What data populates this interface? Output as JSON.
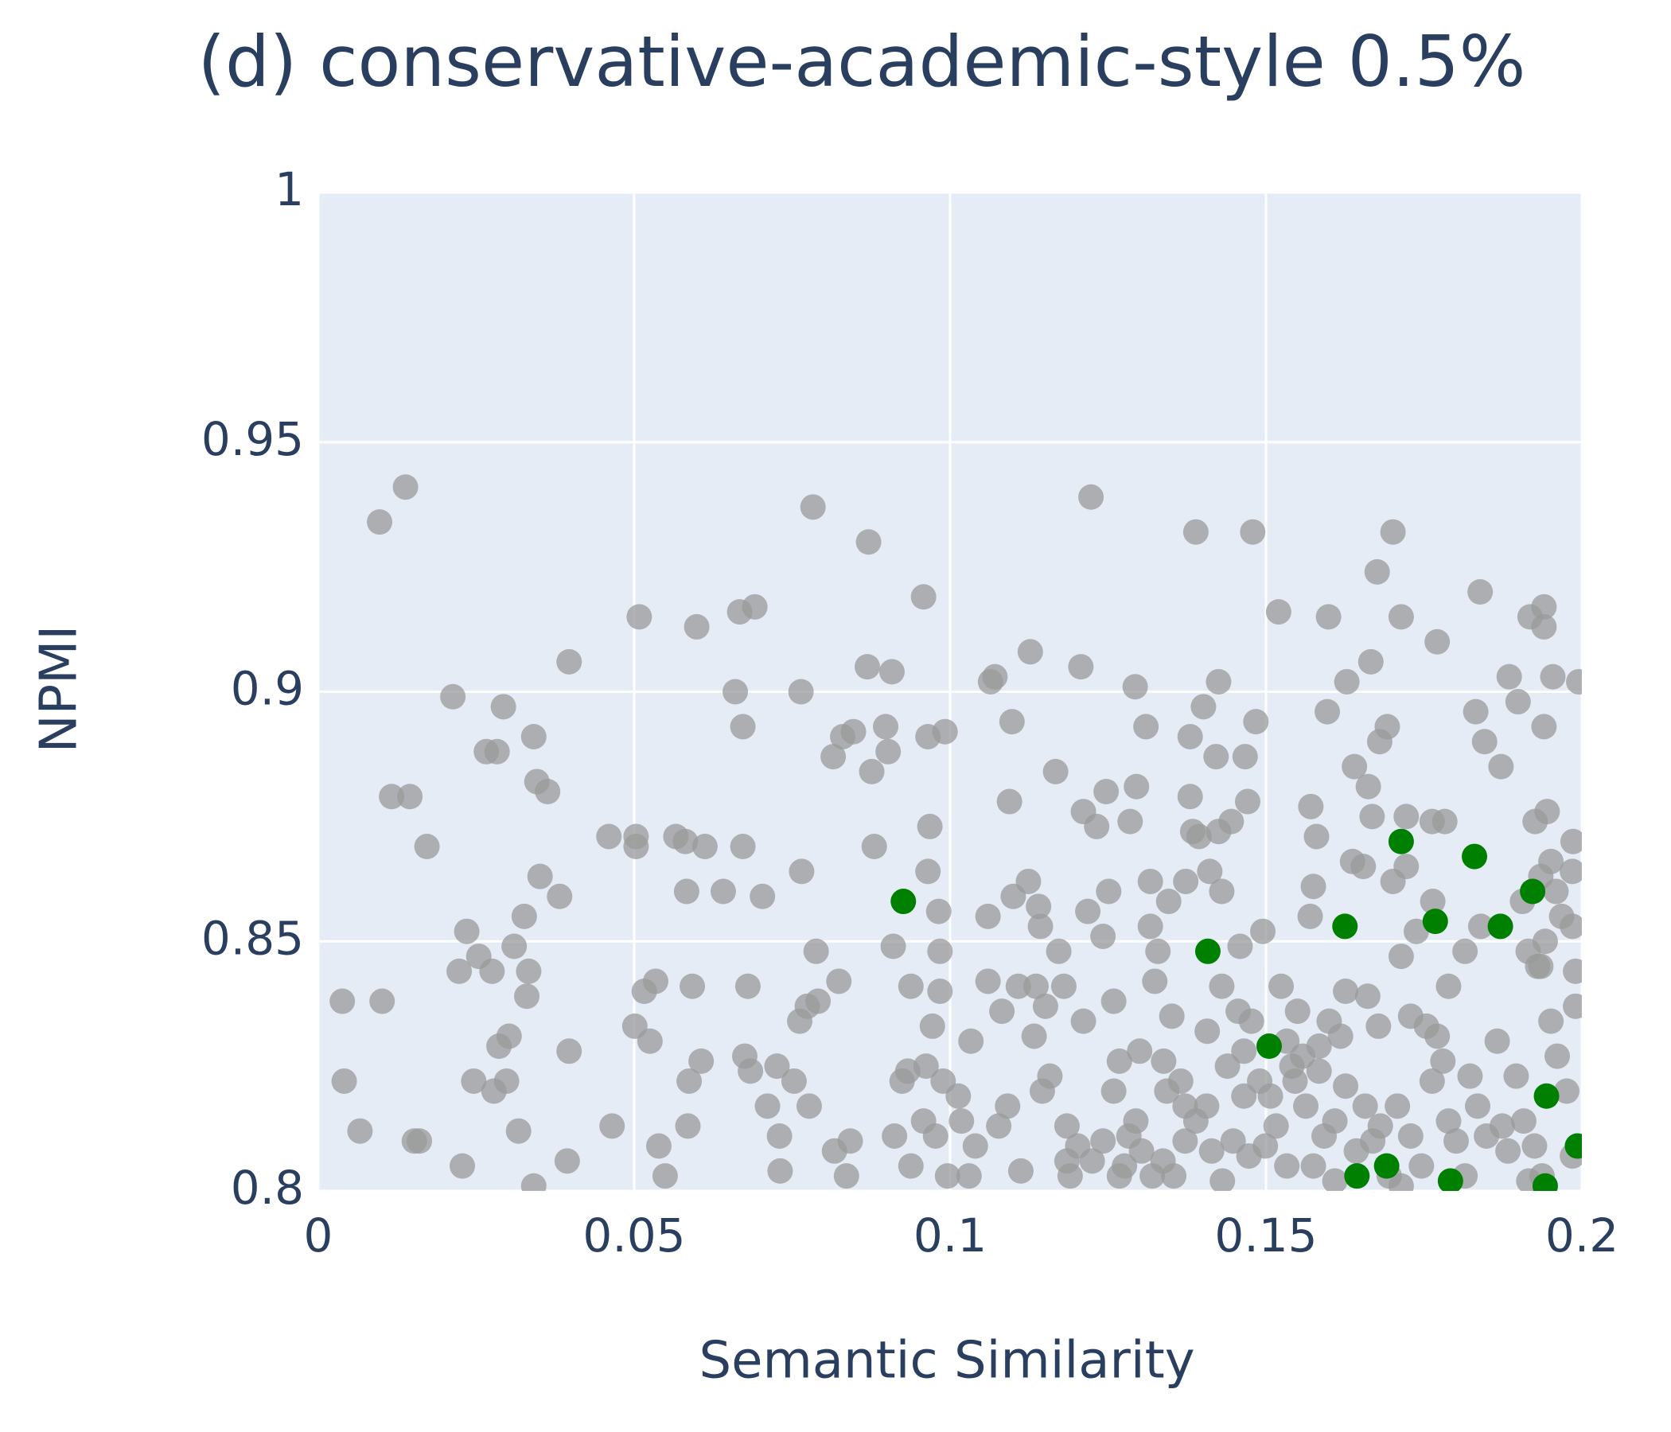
{
  "chart_data": {
    "type": "scatter",
    "title": "(d) conservative-academic-style 0.5%",
    "x_label": "Semantic Similarity",
    "y_label": "NPMI",
    "xlim": [
      0,
      0.2
    ],
    "xticks": [
      0,
      0.05,
      0.1,
      0.15,
      0.2
    ],
    "ylim": [
      0.8,
      1
    ],
    "yticks": [
      0.8,
      0.85,
      0.9,
      0.95,
      1
    ],
    "grid": true,
    "series": [
      {
        "color": "#999999",
        "opacity": 0.75,
        "x": [
          0.0038,
          0.0041,
          0.0066,
          0.0097,
          0.0138,
          0.0101,
          0.0116,
          0.0145,
          0.0172,
          0.0152,
          0.016,
          0.0213,
          0.0235,
          0.0223,
          0.0254,
          0.0246,
          0.0228,
          0.0266,
          0.0283,
          0.0293,
          0.0275,
          0.0278,
          0.0298,
          0.0286,
          0.0302,
          0.031,
          0.0326,
          0.0333,
          0.033,
          0.0317,
          0.0341,
          0.0346,
          0.0363,
          0.0351,
          0.0382,
          0.0397,
          0.0397,
          0.0394,
          0.0341,
          0.046,
          0.0465,
          0.0503,
          0.0503,
          0.0508,
          0.0501,
          0.0516,
          0.0525,
          0.0534,
          0.0539,
          0.0549,
          0.0566,
          0.0581,
          0.0583,
          0.0587,
          0.0585,
          0.0592,
          0.0599,
          0.0606,
          0.0612,
          0.0641,
          0.066,
          0.0667,
          0.0672,
          0.0672,
          0.0691,
          0.0675,
          0.068,
          0.0684,
          0.0703,
          0.0711,
          0.073,
          0.0726,
          0.0731,
          0.0753,
          0.0764,
          0.0765,
          0.0762,
          0.0774,
          0.0783,
          0.0788,
          0.0791,
          0.0777,
          0.0817,
          0.0824,
          0.0815,
          0.083,
          0.0847,
          0.0836,
          0.0842,
          0.0871,
          0.0869,
          0.0876,
          0.088,
          0.0908,
          0.0898,
          0.0902,
          0.091,
          0.0912,
          0.0924,
          0.0933,
          0.0938,
          0.0938,
          0.0958,
          0.0962,
          0.0958,
          0.0965,
          0.0968,
          0.0965,
          0.0972,
          0.0977,
          0.0982,
          0.0984,
          0.0984,
          0.0989,
          0.0992,
          0.0996,
          0.1013,
          0.1018,
          0.103,
          0.1033,
          0.104,
          0.106,
          0.1064,
          0.1071,
          0.106,
          0.1077,
          0.1082,
          0.1091,
          0.1094,
          0.1098,
          0.11,
          0.1108,
          0.1112,
          0.1127,
          0.1124,
          0.1136,
          0.1133,
          0.114,
          0.1143,
          0.1146,
          0.1151,
          0.1158,
          0.1167,
          0.1172,
          0.118,
          0.1185,
          0.1185,
          0.119,
          0.1202,
          0.1211,
          0.1207,
          0.1211,
          0.1218,
          0.1223,
          0.1232,
          0.1242,
          0.1247,
          0.1251,
          0.1259,
          0.1259,
          0.1268,
          0.1283,
          0.1285,
          0.1293,
          0.1295,
          0.13,
          0.131,
          0.1317,
          0.1317,
          0.1324,
          0.1329,
          0.1338,
          0.1343,
          0.1346,
          0.1351,
          0.1365,
          0.1373,
          0.138,
          0.138,
          0.1389,
          0.1384,
          0.1394,
          0.1401,
          0.1411,
          0.1407,
          0.1421,
          0.1425,
          0.1425,
          0.143,
          0.143,
          0.1445,
          0.1459,
          0.1467,
          0.1471,
          0.1479,
          0.1484,
          0.1495,
          0.152,
          0.1524,
          0.1546,
          0.1563,
          0.1571,
          0.158,
          0.157,
          0.1575,
          0.1597,
          0.1599,
          0.1628,
          0.164,
          0.1637,
          0.1654,
          0.1662,
          0.1666,
          0.1668,
          0.1676,
          0.168,
          0.1692,
          0.1701,
          0.1714,
          0.1701,
          0.1722,
          0.1722,
          0.1714,
          0.1771,
          0.1783,
          0.1763,
          0.1832,
          0.1839,
          0.1846,
          0.1872,
          0.1885,
          0.1899,
          0.1918,
          0.194,
          0.194,
          0.194,
          0.1954,
          0.1995,
          0.1945,
          0.1926,
          0.1986,
          0.1951,
          0.1985,
          0.1935,
          0.1906,
          0.1959,
          0.1968,
          0.1942,
          0.1985,
          0.1915,
          0.1935,
          0.193,
          0.1456,
          0.1465,
          0.1477,
          0.149,
          0.1507,
          0.1516,
          0.1533,
          0.1541,
          0.1558,
          0.1584,
          0.1592,
          0.1609,
          0.1618,
          0.1626,
          0.1643,
          0.1657,
          0.1669,
          0.1681,
          0.1695,
          0.1708,
          0.1729,
          0.1746,
          0.1763,
          0.178,
          0.1789,
          0.1801,
          0.1815,
          0.1823,
          0.1835,
          0.1849,
          0.1866,
          0.1874,
          0.1883,
          0.1896,
          0.1908,
          0.1925,
          0.1937,
          0.1951,
          0.1961,
          0.1976,
          0.1985,
          0.199,
          0.199,
          0.1789,
          0.1815,
          0.184,
          0.1764,
          0.1738,
          0.1729,
          0.1754,
          0.1771,
          0.1661,
          0.1678,
          0.1626,
          0.16,
          0.1584,
          0.155,
          0.1575,
          0.1533,
          0.1499,
          0.1473,
          0.1448,
          0.1431,
          0.1414,
          0.1389,
          0.1372,
          0.1354,
          0.1337,
          0.132,
          0.1303,
          0.1294,
          0.1276,
          0.1242,
          0.1225,
          0.1268,
          0.1372,
          0.1406,
          0.1439,
          0.1465,
          0.1609,
          0.1714,
          0.1916
        ],
        "values": [
          0.838,
          0.822,
          0.812,
          0.934,
          0.941,
          0.838,
          0.879,
          0.879,
          0.869,
          0.81,
          0.81,
          0.899,
          0.852,
          0.844,
          0.847,
          0.822,
          0.805,
          0.888,
          0.888,
          0.897,
          0.844,
          0.82,
          0.822,
          0.829,
          0.831,
          0.849,
          0.855,
          0.844,
          0.839,
          0.812,
          0.891,
          0.882,
          0.88,
          0.863,
          0.859,
          0.906,
          0.828,
          0.806,
          0.801,
          0.871,
          0.813,
          0.871,
          0.869,
          0.915,
          0.833,
          0.84,
          0.83,
          0.842,
          0.809,
          0.803,
          0.871,
          0.87,
          0.86,
          0.822,
          0.813,
          0.841,
          0.913,
          0.826,
          0.869,
          0.86,
          0.9,
          0.916,
          0.869,
          0.893,
          0.917,
          0.827,
          0.841,
          0.824,
          0.859,
          0.817,
          0.811,
          0.825,
          0.804,
          0.822,
          0.9,
          0.864,
          0.834,
          0.837,
          0.937,
          0.848,
          0.838,
          0.817,
          0.808,
          0.842,
          0.887,
          0.891,
          0.892,
          0.803,
          0.81,
          0.93,
          0.905,
          0.884,
          0.869,
          0.904,
          0.893,
          0.888,
          0.849,
          0.811,
          0.822,
          0.824,
          0.805,
          0.841,
          0.919,
          0.825,
          0.814,
          0.891,
          0.873,
          0.864,
          0.833,
          0.811,
          0.856,
          0.848,
          0.84,
          0.822,
          0.892,
          0.803,
          0.819,
          0.814,
          0.803,
          0.83,
          0.809,
          0.855,
          0.902,
          0.903,
          0.842,
          0.813,
          0.836,
          0.817,
          0.878,
          0.894,
          0.859,
          0.841,
          0.804,
          0.908,
          0.862,
          0.841,
          0.831,
          0.857,
          0.853,
          0.82,
          0.837,
          0.823,
          0.884,
          0.848,
          0.841,
          0.813,
          0.806,
          0.803,
          0.809,
          0.834,
          0.905,
          0.876,
          0.856,
          0.939,
          0.873,
          0.851,
          0.88,
          0.86,
          0.838,
          0.82,
          0.826,
          0.811,
          0.874,
          0.901,
          0.881,
          0.828,
          0.893,
          0.862,
          0.853,
          0.842,
          0.848,
          0.826,
          0.82,
          0.858,
          0.835,
          0.822,
          0.862,
          0.891,
          0.879,
          0.932,
          0.872,
          0.871,
          0.897,
          0.864,
          0.832,
          0.887,
          0.902,
          0.872,
          0.86,
          0.841,
          0.874,
          0.849,
          0.887,
          0.878,
          0.932,
          0.894,
          0.852,
          0.916,
          0.841,
          0.822,
          0.817,
          0.877,
          0.871,
          0.855,
          0.861,
          0.896,
          0.915,
          0.902,
          0.885,
          0.866,
          0.865,
          0.881,
          0.906,
          0.875,
          0.924,
          0.89,
          0.893,
          0.932,
          0.915,
          0.862,
          0.875,
          0.865,
          0.847,
          0.91,
          0.874,
          0.874,
          0.896,
          0.92,
          0.89,
          0.885,
          0.903,
          0.898,
          0.915,
          0.913,
          0.917,
          0.893,
          0.903,
          0.902,
          0.876,
          0.874,
          0.87,
          0.866,
          0.864,
          0.863,
          0.858,
          0.86,
          0.855,
          0.85,
          0.853,
          0.848,
          0.845,
          0.845,
          0.836,
          0.828,
          0.834,
          0.822,
          0.819,
          0.813,
          0.83,
          0.825,
          0.827,
          0.824,
          0.811,
          0.814,
          0.831,
          0.821,
          0.808,
          0.817,
          0.81,
          0.813,
          0.803,
          0.817,
          0.811,
          0.805,
          0.822,
          0.826,
          0.814,
          0.81,
          0.803,
          0.823,
          0.817,
          0.811,
          0.83,
          0.813,
          0.808,
          0.823,
          0.814,
          0.809,
          0.803,
          0.834,
          0.827,
          0.82,
          0.807,
          0.837,
          0.844,
          0.841,
          0.848,
          0.853,
          0.858,
          0.852,
          0.835,
          0.833,
          0.831,
          0.839,
          0.833,
          0.84,
          0.834,
          0.829,
          0.836,
          0.805,
          0.805,
          0.809,
          0.807,
          0.81,
          0.802,
          0.808,
          0.814,
          0.81,
          0.803,
          0.806,
          0.803,
          0.808,
          0.814,
          0.805,
          0.81,
          0.806,
          0.803,
          0.817,
          0.817,
          0.825,
          0.819,
          0.802,
          0.801,
          0.802
        ]
      },
      {
        "color": "#008000",
        "opacity": 1,
        "x": [
          0.0926,
          0.1408,
          0.1505,
          0.1625,
          0.1644,
          0.1691,
          0.1714,
          0.1768,
          0.1792,
          0.183,
          0.1871,
          0.1922,
          0.1944,
          0.1942,
          0.1993
        ],
        "values": [
          0.858,
          0.848,
          0.829,
          0.853,
          0.803,
          0.805,
          0.87,
          0.854,
          0.802,
          0.867,
          0.853,
          0.86,
          0.819,
          0.801,
          0.809
        ]
      }
    ]
  }
}
